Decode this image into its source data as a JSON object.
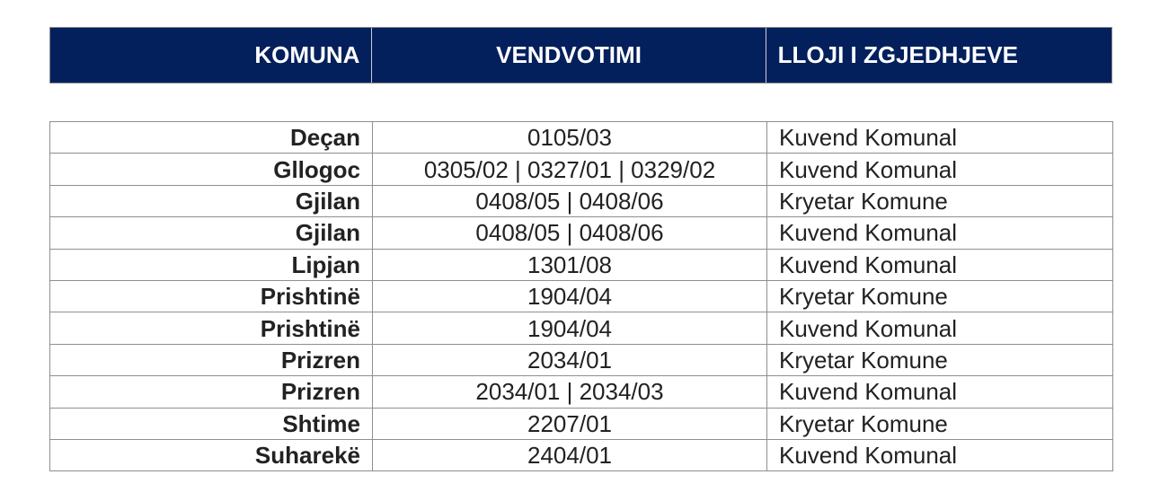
{
  "header": {
    "col1": "KOMUNA",
    "col2": "VENDVOTIMI",
    "col3": "LLOJI I ZGJEDHJEVE",
    "background": "#03205c"
  },
  "rows": [
    {
      "komuna": "Deçan",
      "vendvotimi": "0105/03",
      "lloji": "Kuvend Komunal"
    },
    {
      "komuna": "Gllogoc",
      "vendvotimi": "0305/02 | 0327/01 | 0329/02",
      "lloji": "Kuvend Komunal"
    },
    {
      "komuna": "Gjilan",
      "vendvotimi": "0408/05 | 0408/06",
      "lloji": "Kryetar Komune"
    },
    {
      "komuna": "Gjilan",
      "vendvotimi": "0408/05 | 0408/06",
      "lloji": "Kuvend Komunal"
    },
    {
      "komuna": "Lipjan",
      "vendvotimi": "1301/08",
      "lloji": "Kuvend Komunal"
    },
    {
      "komuna": "Prishtinë",
      "vendvotimi": "1904/04",
      "lloji": "Kryetar Komune"
    },
    {
      "komuna": "Prishtinë",
      "vendvotimi": "1904/04",
      "lloji": "Kuvend Komunal"
    },
    {
      "komuna": "Prizren",
      "vendvotimi": "2034/01",
      "lloji": "Kryetar Komune"
    },
    {
      "komuna": "Prizren",
      "vendvotimi": "2034/01 | 2034/03",
      "lloji": "Kuvend Komunal"
    },
    {
      "komuna": "Shtime",
      "vendvotimi": "2207/01",
      "lloji": "Kryetar Komune"
    },
    {
      "komuna": "Suharekë",
      "vendvotimi": "2404/01",
      "lloji": "Kuvend Komunal"
    }
  ]
}
